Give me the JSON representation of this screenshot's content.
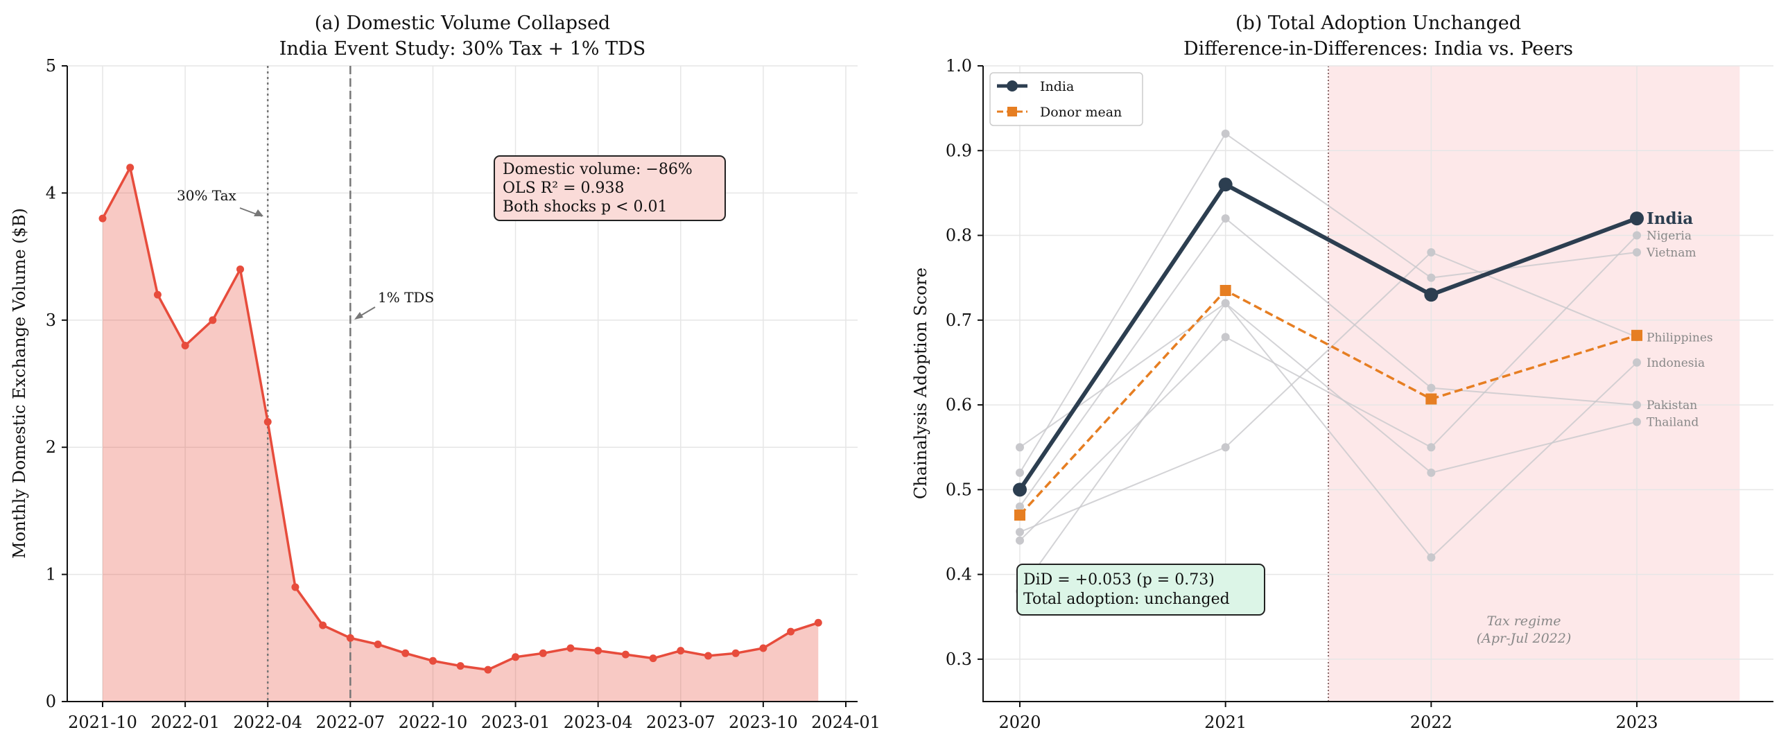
{
  "chart_data": [
    {
      "type": "area",
      "title": "(a) Domestic Volume Collapsed",
      "subtitle": "India Event Study: 30% Tax + 1% TDS",
      "xlabel": "",
      "ylabel": "Monthly Domestic Exchange Volume ($B)",
      "ylim": [
        0,
        5
      ],
      "yticks": [
        "0",
        "1",
        "2",
        "3",
        "4",
        "5"
      ],
      "xticks": [
        "2021-10",
        "2022-01",
        "2022-04",
        "2022-07",
        "2022-10",
        "2023-01",
        "2023-04",
        "2023-07",
        "2023-10",
        "2024-01"
      ],
      "start_month": "2021-10",
      "values": [
        3.8,
        4.2,
        3.2,
        2.8,
        3.0,
        3.4,
        2.2,
        0.9,
        0.6,
        0.5,
        0.45,
        0.38,
        0.32,
        0.28,
        0.25,
        0.35,
        0.38,
        0.42,
        0.4,
        0.37,
        0.34,
        0.4,
        0.36,
        0.38,
        0.42,
        0.55,
        0.62
      ],
      "color": "#e74c3c",
      "events": [
        {
          "label": "30% Tax",
          "month": "2022-04",
          "style": "dotted"
        },
        {
          "label": "1% TDS",
          "month": "2022-07",
          "style": "dashed"
        }
      ],
      "annotation": [
        "Domestic volume: −86%",
        "OLS R² = 0.938",
        "Both shocks p < 0.01"
      ],
      "grid": true
    },
    {
      "type": "line",
      "title": "(b) Total Adoption Unchanged",
      "subtitle": "Difference-in-Differences: India vs. Peers",
      "xlabel": "",
      "ylabel": "Chainalysis Adoption Score",
      "x": [
        "2020",
        "2021",
        "2022",
        "2023"
      ],
      "ylim": [
        0.25,
        1.0
      ],
      "yticks": [
        "0.3",
        "0.4",
        "0.5",
        "0.6",
        "0.7",
        "0.8",
        "0.9",
        "1.0"
      ],
      "series": [
        {
          "name": "India",
          "values": [
            0.5,
            0.86,
            0.73,
            0.82
          ],
          "color": "#2c3e50"
        },
        {
          "name": "Donor mean",
          "values": [
            0.47,
            0.735,
            0.607,
            0.682
          ],
          "color": "#e67e22"
        }
      ],
      "peers": [
        {
          "name": "Nigeria",
          "values": [
            0.44,
            0.68,
            0.55,
            0.8
          ]
        },
        {
          "name": "Vietnam",
          "values": [
            0.52,
            0.92,
            0.75,
            0.78
          ]
        },
        {
          "name": "Philippines",
          "values": [
            0.45,
            0.55,
            0.78,
            0.68
          ]
        },
        {
          "name": "Indonesia",
          "values": [
            0.38,
            0.72,
            0.42,
            0.65
          ]
        },
        {
          "name": "Pakistan",
          "values": [
            0.48,
            0.82,
            0.62,
            0.6
          ]
        },
        {
          "name": "Thailand",
          "values": [
            0.55,
            0.72,
            0.52,
            0.58
          ]
        }
      ],
      "end_label_india": "India",
      "shaded_region": {
        "from": 2021.5,
        "to": 2023.5,
        "label": [
          "Tax regime",
          "(Apr-Jul 2022)"
        ],
        "color": "#fde2e4"
      },
      "annotation": [
        "DiD = +0.053 (p = 0.73)",
        "Total adoption: unchanged"
      ],
      "legend": {
        "entries": [
          "India",
          "Donor mean"
        ],
        "placement": "top-left"
      },
      "grid": true
    }
  ]
}
